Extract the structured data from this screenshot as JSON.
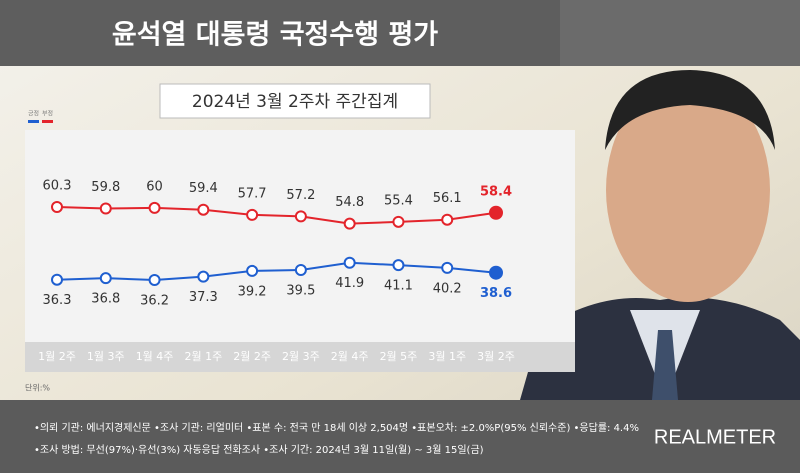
{
  "chart_data": {
    "type": "line",
    "title": "윤석열 대통령 국정수행 평가",
    "subtitle": "2024년 3월 2주차 주간집계",
    "unit_label": "단위:%",
    "categories": [
      "1월 2주",
      "1월 3주",
      "1월 4주",
      "2월 1주",
      "2월 2주",
      "2월 3주",
      "2월 4주",
      "2월 5주",
      "3월 1주",
      "3월 2주"
    ],
    "series": [
      {
        "name": "긍정",
        "color": "#1f5fd0",
        "values": [
          36.3,
          36.8,
          36.2,
          37.3,
          39.2,
          39.5,
          41.9,
          41.1,
          40.2,
          38.6
        ]
      },
      {
        "name": "부정",
        "color": "#e3242b",
        "values": [
          60.3,
          59.8,
          60.0,
          59.4,
          57.7,
          57.2,
          54.8,
          55.4,
          56.1,
          58.4
        ]
      }
    ]
  },
  "footer": {
    "notes": [
      "•의뢰 기관: 에너지경제신문 •조사 기관: 리얼미터 •표본 수: 전국 만 18세 이상 2,504명 •표본오차: ±2.0%P(95% 신뢰수준) •응답률: 4.4%",
      "•조사 방법: 무선(97%)·유선(3%) 자동응답 전화조사 •조사 기간: 2024년 3월 11일(월) ~ 3월 15일(금)"
    ],
    "brand": "REALMETER"
  }
}
